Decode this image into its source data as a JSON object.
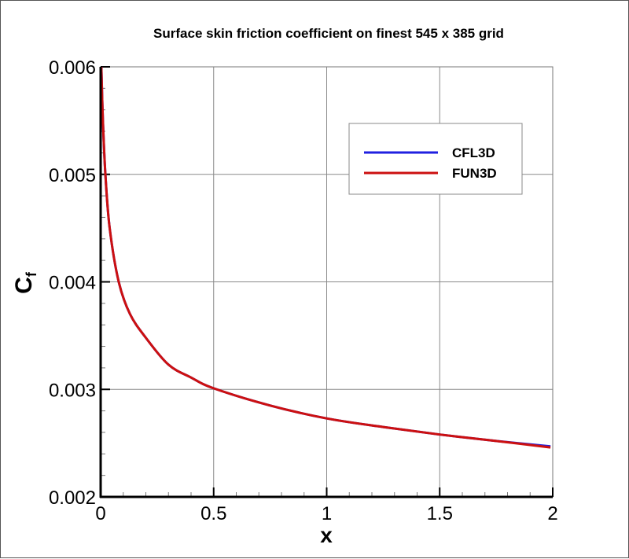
{
  "chart_data": {
    "type": "line",
    "title": "Surface skin friction coefficient on finest 545 x 385 grid",
    "xlabel": "x",
    "ylabel": "C",
    "ylabel_subscript": "f",
    "xlim": [
      0,
      2
    ],
    "ylim": [
      0.002,
      0.006
    ],
    "xticks": [
      "0",
      "0.5",
      "1",
      "1.5",
      "2"
    ],
    "yticks": [
      "0.002",
      "0.003",
      "0.004",
      "0.005",
      "0.006"
    ],
    "grid": true,
    "legend_position": "upper right (inside)",
    "series": [
      {
        "name": "CFL3D",
        "color": "#2020e0",
        "x": [
          0.003,
          0.01,
          0.021,
          0.04,
          0.08,
          0.13,
          0.2,
          0.3,
          0.4,
          0.5,
          0.75,
          1.0,
          1.25,
          1.5,
          1.75,
          1.99
        ],
        "y": [
          0.006,
          0.0055,
          0.005,
          0.0045,
          0.004,
          0.0037,
          0.00348,
          0.00323,
          0.00311,
          0.00301,
          0.00285,
          0.00273,
          0.00265,
          0.00258,
          0.00252,
          0.00247
        ]
      },
      {
        "name": "FUN3D",
        "color": "#cc1010",
        "x": [
          0.003,
          0.01,
          0.021,
          0.04,
          0.08,
          0.13,
          0.2,
          0.3,
          0.4,
          0.5,
          0.75,
          1.0,
          1.25,
          1.5,
          1.75,
          1.99
        ],
        "y": [
          0.006,
          0.0055,
          0.005,
          0.0045,
          0.004,
          0.0037,
          0.00348,
          0.00323,
          0.00311,
          0.00301,
          0.00285,
          0.00273,
          0.00265,
          0.00258,
          0.00252,
          0.00246
        ]
      }
    ]
  },
  "legend": {
    "items": [
      {
        "label": "CFL3D",
        "color": "#2020e0"
      },
      {
        "label": "FUN3D",
        "color": "#cc1010"
      }
    ]
  }
}
